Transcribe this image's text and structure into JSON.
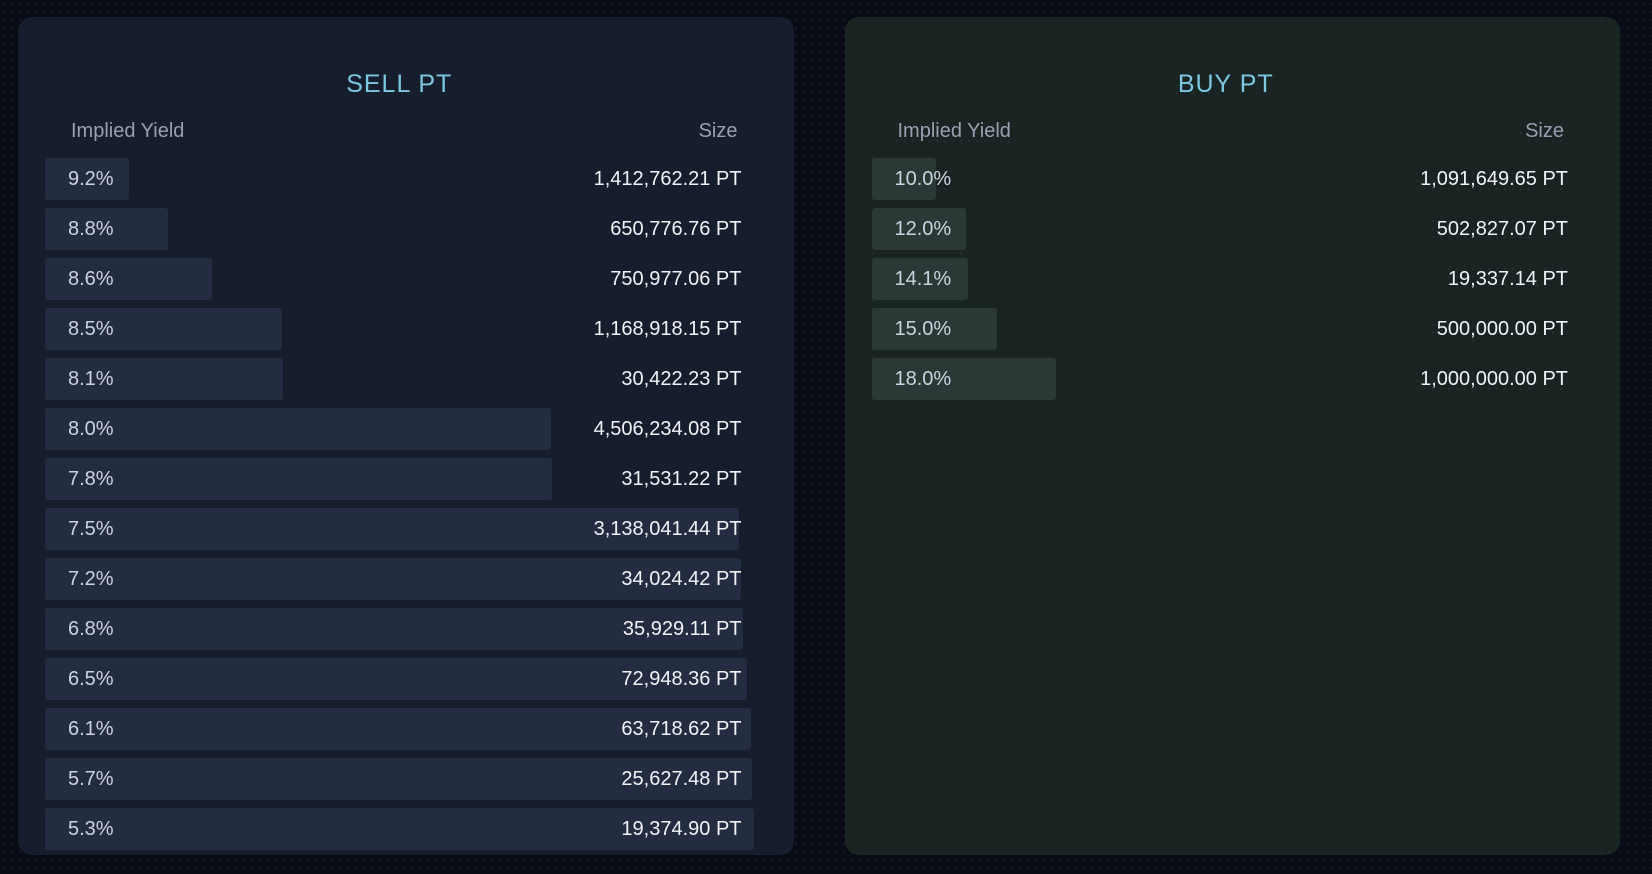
{
  "theme": {
    "page_bg": "#090c15",
    "sell_card_bg": "#161d2c",
    "sell_bar": "#242c41",
    "buy_card_bg": "#192322",
    "buy_bar": "#2b3936",
    "title_accent": "#7cc8e2",
    "header_text": "#98a0b0",
    "yield_text": "#ccd3e0",
    "size_text": "#f1f3f7"
  },
  "panels": [
    {
      "id": "sell",
      "title": "SELL PT",
      "columns": {
        "yield": "Implied Yield",
        "size": "Size"
      },
      "rows": [
        {
          "yield": "9.2%",
          "size": "1,412,762.21 PT",
          "depth_pct": 11.8
        },
        {
          "yield": "8.8%",
          "size": "650,776.76 PT",
          "depth_pct": 17.3
        },
        {
          "yield": "8.6%",
          "size": "750,977.06 PT",
          "depth_pct": 23.6
        },
        {
          "yield": "8.5%",
          "size": "1,168,918.15 PT",
          "depth_pct": 33.4
        },
        {
          "yield": "8.1%",
          "size": "30,422.23 PT",
          "depth_pct": 33.6
        },
        {
          "yield": "8.0%",
          "size": "4,506,234.08 PT",
          "depth_pct": 71.4
        },
        {
          "yield": "7.8%",
          "size": "31,531.22 PT",
          "depth_pct": 71.6
        },
        {
          "yield": "7.5%",
          "size": "3,138,041.44 PT",
          "depth_pct": 97.9
        },
        {
          "yield": "7.2%",
          "size": "34,024.42 PT",
          "depth_pct": 98.2
        },
        {
          "yield": "6.8%",
          "size": "35,929.11 PT",
          "depth_pct": 98.5
        },
        {
          "yield": "6.5%",
          "size": "72,948.36 PT",
          "depth_pct": 99.1
        },
        {
          "yield": "6.1%",
          "size": "63,718.62 PT",
          "depth_pct": 99.6
        },
        {
          "yield": "5.7%",
          "size": "25,627.48 PT",
          "depth_pct": 99.8
        },
        {
          "yield": "5.3%",
          "size": "19,374.90 PT",
          "depth_pct": 100
        }
      ]
    },
    {
      "id": "buy",
      "title": "BUY PT",
      "columns": {
        "yield": "Implied Yield",
        "size": "Size"
      },
      "rows": [
        {
          "yield": "10.0%",
          "size": "1,091,649.65 PT",
          "depth_pct": 9.1
        },
        {
          "yield": "12.0%",
          "size": "502,827.07 PT",
          "depth_pct": 13.4
        },
        {
          "yield": "14.1%",
          "size": "19,337.14 PT",
          "depth_pct": 13.6
        },
        {
          "yield": "15.0%",
          "size": "500,000.00 PT",
          "depth_pct": 17.7
        },
        {
          "yield": "18.0%",
          "size": "1,000,000.00 PT",
          "depth_pct": 26.1
        }
      ]
    }
  ],
  "chart_data": [
    {
      "type": "bar",
      "orientation": "horizontal",
      "title": "SELL PT",
      "xlabel": "Size",
      "ylabel": "Implied Yield",
      "legend": "none",
      "grid": false,
      "categories": [
        "9.2%",
        "8.8%",
        "8.6%",
        "8.5%",
        "8.1%",
        "8.0%",
        "7.8%",
        "7.5%",
        "7.2%",
        "6.8%",
        "6.5%",
        "6.1%",
        "5.7%",
        "5.3%"
      ],
      "values": [
        1412762.21,
        650776.76,
        750977.06,
        1168918.15,
        30422.23,
        4506234.08,
        31531.22,
        3138041.44,
        34024.42,
        35929.11,
        72948.36,
        63718.62,
        25627.48,
        19374.9
      ],
      "unit": "PT",
      "bar_length_rule": "bar width = cumulative size from best level / total sell depth",
      "cumulative_pct": [
        11.8,
        17.3,
        23.6,
        33.4,
        33.6,
        71.4,
        71.6,
        97.9,
        98.2,
        98.5,
        99.1,
        99.6,
        99.8,
        100
      ]
    },
    {
      "type": "bar",
      "orientation": "horizontal",
      "title": "BUY PT",
      "xlabel": "Size",
      "ylabel": "Implied Yield",
      "legend": "none",
      "grid": false,
      "categories": [
        "10.0%",
        "12.0%",
        "14.1%",
        "15.0%",
        "18.0%"
      ],
      "values": [
        1091649.65,
        502827.07,
        19337.14,
        500000.0,
        1000000.0
      ],
      "unit": "PT",
      "bar_length_rule": "bar width = cumulative size from best level / total sell depth (shared scale)",
      "cumulative_pct": [
        9.1,
        13.4,
        13.6,
        17.7,
        26.1
      ]
    }
  ]
}
